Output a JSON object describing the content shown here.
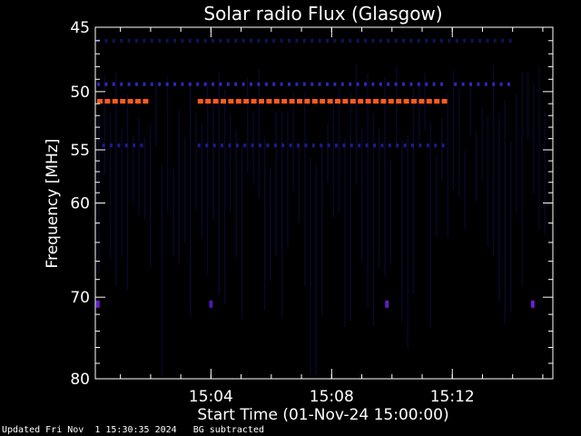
{
  "chart_data": {
    "type": "heatmap",
    "title": "Solar radio Flux (Glasgow)",
    "xlabel": "Start Time (01-Nov-24 15:00:00)",
    "ylabel": "Frequency [MHz]",
    "x_unit": "time",
    "xlim": [
      "15:00:10",
      "15:15:20"
    ],
    "ylim": [
      80,
      45
    ],
    "y_scale": "log-descending",
    "x_ticks": [
      "15:04",
      "15:08",
      "15:12"
    ],
    "y_ticks": [
      45,
      50,
      55,
      60,
      70,
      80
    ],
    "background_subtracted": true,
    "bands": [
      {
        "freq_mhz": 50.8,
        "intensity": "high",
        "color": "#ff5a1e",
        "segments": [
          [
            "15:00:10",
            "15:01:45"
          ],
          [
            "15:03:30",
            "15:11:45"
          ]
        ]
      },
      {
        "freq_mhz": 49.4,
        "intensity": "medium",
        "color": "#2a2ab8",
        "segments": [
          [
            "15:00:10",
            "15:11:45"
          ],
          [
            "15:12:00",
            "15:14:00"
          ]
        ]
      },
      {
        "freq_mhz": 54.6,
        "intensity": "low",
        "color": "#1c1c8c",
        "segments": [
          [
            "15:00:20",
            "15:01:45"
          ],
          [
            "15:03:30",
            "15:11:45"
          ]
        ]
      },
      {
        "freq_mhz": 46.0,
        "intensity": "low",
        "color": "#12125e",
        "segments": [
          [
            "15:00:10",
            "15:14:00"
          ]
        ]
      }
    ],
    "bursts": [
      {
        "time": "15:00:15",
        "freq_mhz": 70.8,
        "color": "#6a1ed0"
      },
      {
        "time": "15:04:00",
        "freq_mhz": 70.8,
        "color": "#4a1ab0"
      },
      {
        "time": "15:09:50",
        "freq_mhz": 70.8,
        "color": "#5a1ec0"
      },
      {
        "time": "15:14:40",
        "freq_mhz": 70.8,
        "color": "#6a1ed0"
      }
    ]
  },
  "footer": {
    "updated": "Updated Fri Nov  1 15:30:35 2024",
    "note": "BG subtracted"
  }
}
